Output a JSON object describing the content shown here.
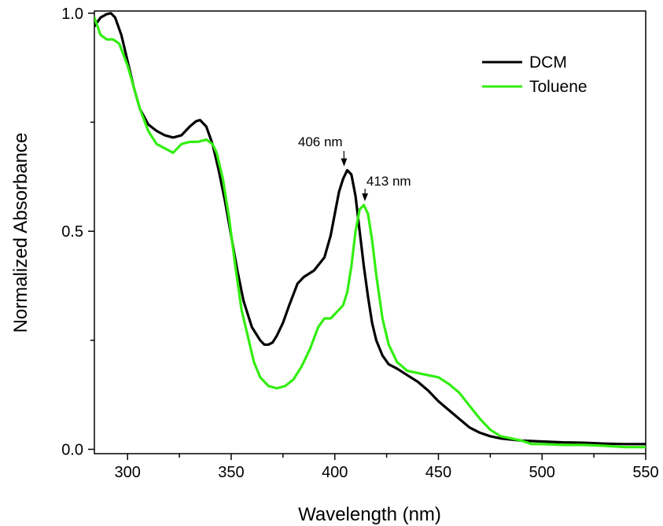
{
  "chart_data": {
    "type": "line",
    "title": "",
    "xlabel": "Wavelength (nm)",
    "ylabel": "Normalized Absorbance",
    "xlim": [
      284,
      550
    ],
    "ylim": [
      -0.01,
      1.005
    ],
    "x_ticks": [
      300,
      350,
      400,
      450,
      500,
      550
    ],
    "x_tick_labels": [
      "300",
      "350",
      "400",
      "450",
      "500",
      "550"
    ],
    "y_ticks": [
      0.0,
      0.5,
      1.0
    ],
    "y_tick_labels": [
      "0.0",
      "0.5",
      "1.0"
    ],
    "legend_position": "top-right",
    "grid": false,
    "series": [
      {
        "name": "DCM",
        "color": "#000000",
        "x": [
          284,
          287,
          290,
          292,
          294,
          297,
          300,
          303,
          306,
          310,
          314,
          318,
          322,
          326,
          330,
          333,
          335,
          338,
          341,
          344,
          347,
          350,
          353,
          356,
          360,
          364,
          366,
          368,
          370,
          372,
          375,
          378,
          382,
          385,
          390,
          395,
          398,
          400,
          402,
          404,
          406,
          408,
          410,
          412,
          414,
          416,
          418,
          420,
          423,
          426,
          430,
          435,
          440,
          445,
          450,
          455,
          460,
          465,
          470,
          475,
          480,
          490,
          500,
          510,
          520,
          530,
          540,
          550
        ],
        "values": [
          0.97,
          0.99,
          0.998,
          1.0,
          0.99,
          0.95,
          0.89,
          0.83,
          0.78,
          0.745,
          0.73,
          0.72,
          0.715,
          0.72,
          0.74,
          0.752,
          0.755,
          0.74,
          0.7,
          0.64,
          0.57,
          0.49,
          0.41,
          0.34,
          0.28,
          0.25,
          0.24,
          0.24,
          0.245,
          0.26,
          0.29,
          0.33,
          0.38,
          0.395,
          0.41,
          0.44,
          0.49,
          0.54,
          0.59,
          0.62,
          0.64,
          0.63,
          0.58,
          0.5,
          0.42,
          0.35,
          0.29,
          0.25,
          0.215,
          0.195,
          0.185,
          0.17,
          0.155,
          0.135,
          0.11,
          0.09,
          0.07,
          0.05,
          0.038,
          0.03,
          0.025,
          0.02,
          0.018,
          0.016,
          0.015,
          0.013,
          0.012,
          0.012
        ]
      },
      {
        "name": "Toluene",
        "color": "#33ee11",
        "x": [
          284,
          287,
          290,
          293,
          296,
          300,
          303,
          306,
          310,
          314,
          318,
          322,
          326,
          330,
          334,
          338,
          341,
          343,
          346,
          349,
          352,
          355,
          358,
          361,
          364,
          368,
          372,
          376,
          380,
          384,
          388,
          392,
          395,
          398,
          401,
          404,
          406,
          408,
          410,
          412,
          414,
          416,
          418,
          420,
          423,
          426,
          430,
          435,
          440,
          445,
          450,
          455,
          460,
          465,
          470,
          475,
          480,
          485,
          490,
          495,
          500,
          510,
          520,
          530,
          540,
          550
        ],
        "values": [
          0.99,
          0.95,
          0.94,
          0.94,
          0.93,
          0.88,
          0.83,
          0.78,
          0.73,
          0.7,
          0.69,
          0.68,
          0.7,
          0.705,
          0.705,
          0.71,
          0.7,
          0.68,
          0.62,
          0.53,
          0.42,
          0.32,
          0.26,
          0.2,
          0.165,
          0.145,
          0.14,
          0.145,
          0.16,
          0.19,
          0.23,
          0.28,
          0.3,
          0.3,
          0.315,
          0.33,
          0.36,
          0.42,
          0.5,
          0.55,
          0.56,
          0.54,
          0.48,
          0.4,
          0.3,
          0.24,
          0.2,
          0.18,
          0.175,
          0.17,
          0.165,
          0.15,
          0.13,
          0.1,
          0.07,
          0.045,
          0.03,
          0.025,
          0.02,
          0.012,
          0.012,
          0.01,
          0.01,
          0.008,
          0.005,
          0.005
        ]
      }
    ],
    "annotations": [
      {
        "text": "406 nm",
        "x": 406,
        "y": 0.64,
        "label_x": 393,
        "label_y": 0.695
      },
      {
        "text": "413 nm",
        "x": 413,
        "y": 0.56,
        "label_x": 426,
        "label_y": 0.605
      }
    ]
  }
}
